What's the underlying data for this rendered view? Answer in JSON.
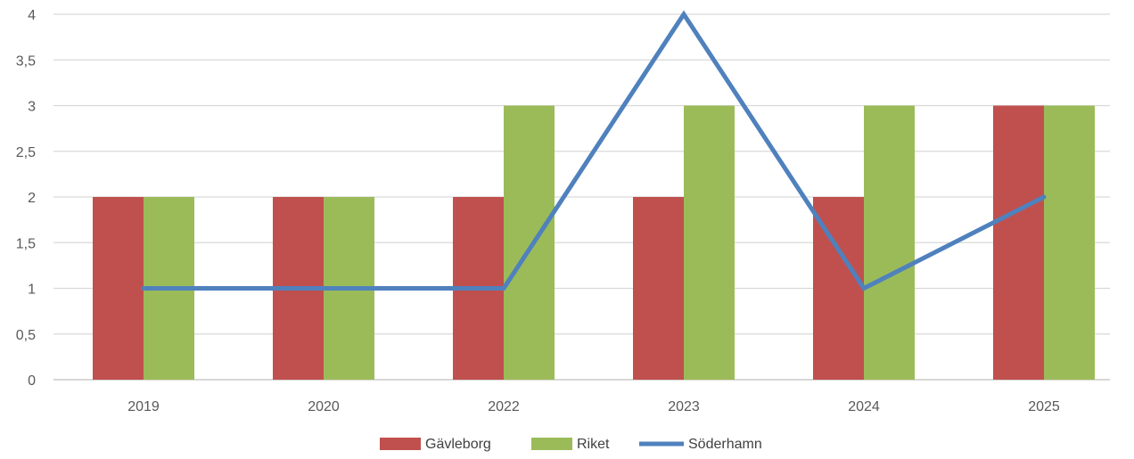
{
  "chart_data": {
    "type": "bar",
    "categories": [
      "2019",
      "2020",
      "2022",
      "2023",
      "2024",
      "2025"
    ],
    "series": [
      {
        "name": "Gävleborg",
        "kind": "bar",
        "color": "#c0504d",
        "values": [
          2,
          2,
          2,
          2,
          2,
          3
        ]
      },
      {
        "name": "Riket",
        "kind": "bar",
        "color": "#9bbb59",
        "values": [
          2,
          2,
          3,
          3,
          3,
          3
        ]
      },
      {
        "name": "Söderhamn",
        "kind": "line",
        "color": "#4f81bd",
        "values": [
          1,
          1,
          1,
          4,
          1,
          2
        ]
      }
    ],
    "y_ticks": [
      "0",
      "0,5",
      "1",
      "1,5",
      "2",
      "2,5",
      "3",
      "3,5",
      "4"
    ],
    "ylim": [
      0,
      4
    ],
    "grid": true,
    "legend_position": "bottom-center"
  }
}
